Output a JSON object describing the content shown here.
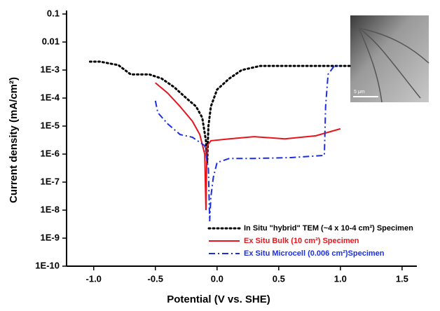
{
  "chart_data": {
    "type": "line",
    "x_label": "Potential (V vs. SHE)",
    "y_label": "Current density (mA/cm²)",
    "xlim": [
      -1.22,
      1.62
    ],
    "ylim": [
      1e-10,
      0.1
    ],
    "log_y": true,
    "xticks": [
      {
        "value": -1.0,
        "label": "-1.0"
      },
      -0.5,
      {
        "value": 0.0,
        "label": "0.0"
      },
      0.5,
      {
        "value": 1.0,
        "label": "1.0"
      },
      1.5
    ],
    "yticks": [
      0.1,
      0.01,
      {
        "value": 0.001,
        "label": "1E-3"
      },
      {
        "value": 0.0001,
        "label": "1E-4"
      },
      {
        "value": 1e-05,
        "label": "1E-5"
      },
      {
        "value": 1e-06,
        "label": "1E-6"
      },
      {
        "value": 1e-07,
        "label": "1E-7"
      },
      {
        "value": 1e-08,
        "label": "1E-8"
      },
      {
        "value": 1e-09,
        "label": "1E-9"
      },
      {
        "value": 1e-10,
        "label": "1E-10"
      }
    ],
    "legend": "lower right",
    "series": [
      {
        "name": "In Situ \"hybrid\" TEM (~4 x 10-4 cm²) Specimen",
        "color": "#000000",
        "dash": "dot",
        "x": [
          -1.03,
          -0.95,
          -0.8,
          -0.7,
          -0.55,
          -0.45,
          -0.35,
          -0.25,
          -0.17,
          -0.12,
          -0.09,
          -0.08,
          -0.07,
          -0.05,
          0.0,
          0.1,
          0.2,
          0.35,
          0.6,
          0.9,
          1.08
        ],
        "values": [
          0.002,
          0.002,
          0.0015,
          0.0007,
          0.0007,
          0.0005,
          0.00025,
          0.0001,
          5e-05,
          2e-05,
          3e-06,
          5e-07,
          1e-05,
          5e-05,
          0.0002,
          0.0005,
          0.001,
          0.0014,
          0.0014,
          0.0014,
          0.0014
        ]
      },
      {
        "name": "Ex Situ Bulk (10 cm²) Specimen",
        "color": "#e8141c",
        "dash": "solid",
        "x": [
          -0.5,
          -0.4,
          -0.3,
          -0.2,
          -0.14,
          -0.1,
          -0.09,
          -0.085,
          -0.08,
          -0.05,
          0.1,
          0.3,
          0.55,
          0.8,
          1.0
        ],
        "values": [
          0.00035,
          0.00015,
          5e-05,
          1.5e-05,
          5e-06,
          1e-06,
          1e-08,
          3e-07,
          2e-06,
          3e-06,
          3.5e-06,
          4.2e-06,
          3.5e-06,
          4.5e-06,
          8e-06
        ]
      },
      {
        "name": "Ex Situ Microcell (0.006 cm²)Specimen",
        "color": "#1b2fe0",
        "dash": "dashdot",
        "x": [
          -0.5,
          -0.48,
          -0.4,
          -0.3,
          -0.2,
          -0.1,
          -0.07,
          -0.06,
          -0.05,
          -0.03,
          0.0,
          0.1,
          0.3,
          0.6,
          0.87,
          0.88,
          0.9,
          0.95,
          1.0
        ],
        "values": [
          8e-05,
          3e-05,
          1.2e-05,
          5e-06,
          4e-06,
          2e-06,
          3e-07,
          4e-09,
          3e-08,
          1.5e-07,
          5e-07,
          7e-07,
          7e-07,
          7.5e-07,
          9e-07,
          5e-05,
          0.0007,
          0.0014,
          0.0014
        ]
      }
    ],
    "inset": {
      "scale_label": "5 μm"
    }
  }
}
